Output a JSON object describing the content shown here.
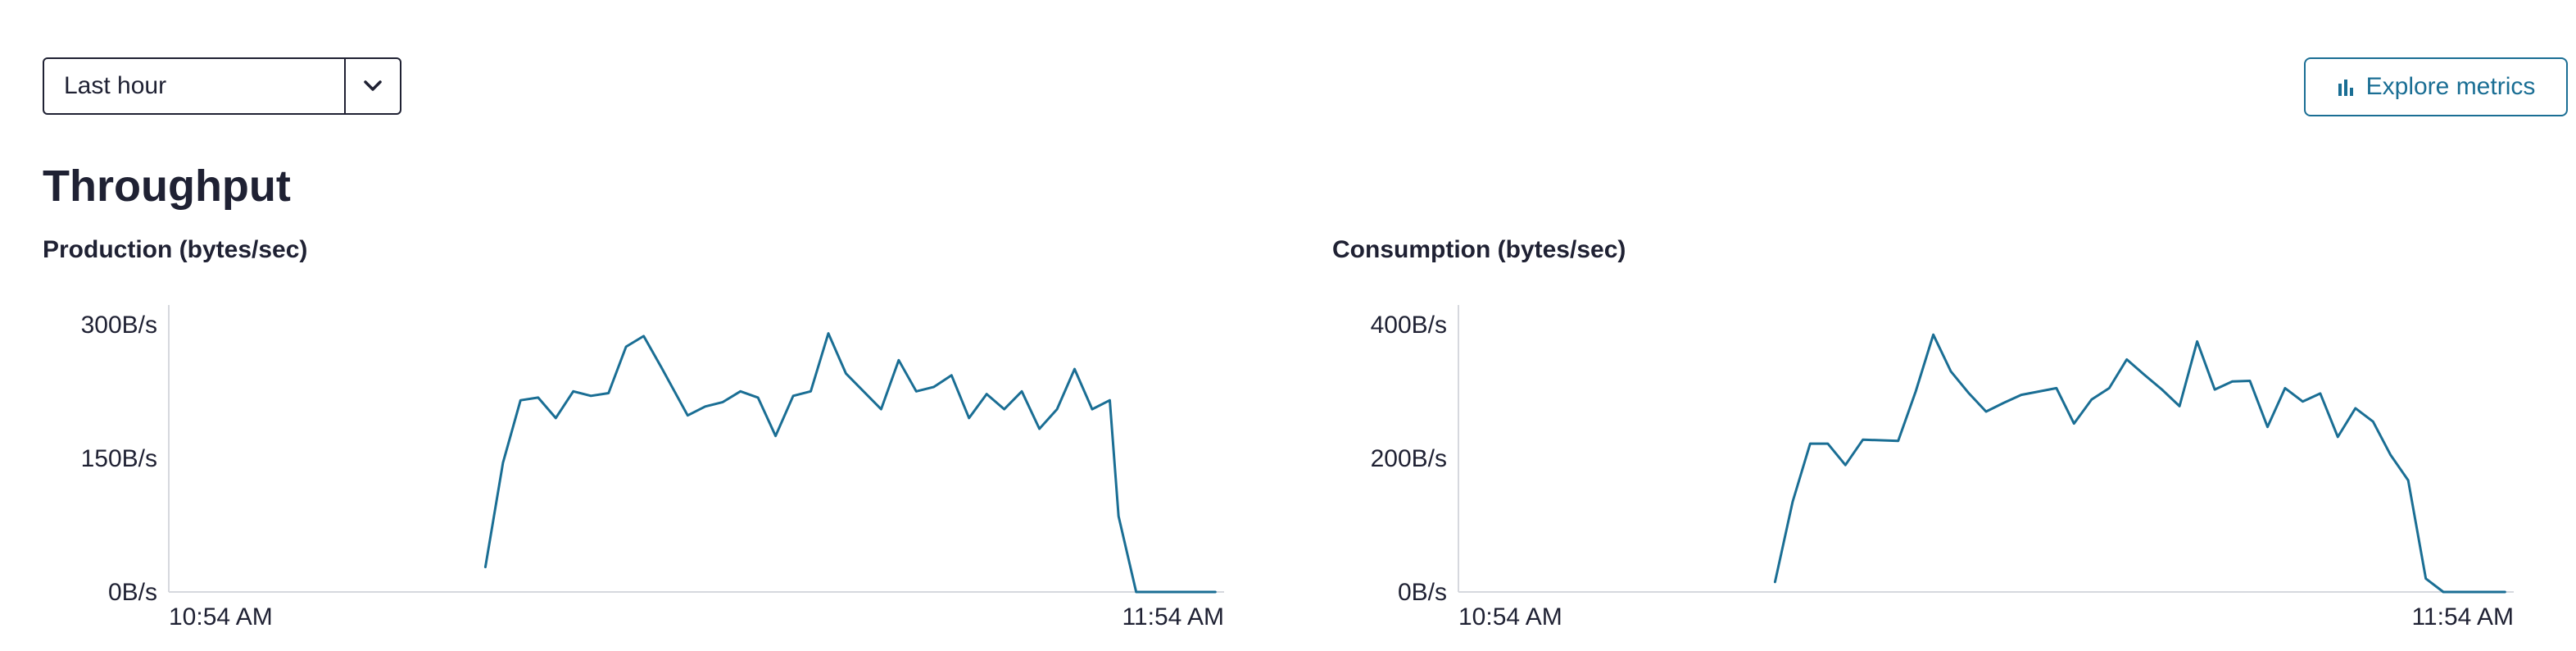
{
  "time_range": {
    "selected": "Last hour"
  },
  "toolbar": {
    "explore_label": "Explore metrics"
  },
  "section": {
    "title": "Throughput"
  },
  "colors": {
    "line": "#1a6e94",
    "accent": "#1a6e94",
    "text": "#1f2133",
    "axis": "#d6d8de"
  },
  "icons": {
    "dropdown": "chevron-down-icon",
    "explore": "bar-chart-icon"
  },
  "chart_data": [
    {
      "type": "line",
      "title": "Production (bytes/sec)",
      "x_labels": [
        "10:54 AM",
        "11:54 AM"
      ],
      "x_range": [
        0,
        60
      ],
      "y_ticks": [
        {
          "value": 0,
          "label": "0B/s"
        },
        {
          "value": 150,
          "label": "150B/s"
        },
        {
          "value": 300,
          "label": "300B/s"
        }
      ],
      "ylim": [
        0,
        320
      ],
      "grid": false,
      "series": [
        {
          "x": [
            18,
            19,
            20,
            21,
            22,
            23,
            24,
            25,
            26,
            27,
            28,
            29.5,
            30.5,
            31.5,
            32.5,
            33.5,
            34.5,
            35.5,
            36.5,
            37.5,
            38.5,
            40.5,
            41.5,
            42.5,
            43.5,
            44.5,
            45.5,
            46.5,
            47.5,
            48.5,
            49.5,
            50.5,
            51.5,
            52.5,
            53.5,
            54,
            55,
            55.5,
            56.5,
            57.5,
            58.5,
            59.5
          ],
          "y": [
            28,
            145,
            215,
            218,
            195,
            225,
            220,
            223,
            275,
            287,
            252,
            198,
            208,
            213,
            225,
            218,
            175,
            220,
            225,
            290,
            245,
            205,
            260,
            225,
            230,
            243,
            195,
            222,
            205,
            225,
            183,
            205,
            250,
            205,
            215,
            85,
            0,
            0,
            0,
            0,
            0,
            0
          ]
        }
      ]
    },
    {
      "type": "line",
      "title": "Consumption (bytes/sec)",
      "x_labels": [
        "10:54 AM",
        "11:54 AM"
      ],
      "x_range": [
        0,
        60
      ],
      "y_ticks": [
        {
          "value": 0,
          "label": "0B/s"
        },
        {
          "value": 200,
          "label": "200B/s"
        },
        {
          "value": 400,
          "label": "400B/s"
        }
      ],
      "ylim": [
        0,
        427
      ],
      "grid": false,
      "series": [
        {
          "x": [
            18,
            19,
            20,
            21,
            22,
            23,
            25,
            26,
            27,
            28,
            29,
            30,
            31,
            32,
            33,
            34,
            35,
            36,
            37,
            38,
            39,
            40,
            41,
            42,
            43,
            44,
            45,
            46,
            47,
            48,
            49,
            50,
            51,
            52,
            53,
            54,
            55,
            56,
            57,
            58,
            59,
            59.5
          ],
          "y": [
            15,
            135,
            222,
            222,
            190,
            228,
            226,
            300,
            385,
            330,
            298,
            270,
            283,
            295,
            300,
            305,
            252,
            288,
            305,
            348,
            325,
            303,
            278,
            375,
            303,
            315,
            316,
            247,
            305,
            285,
            297,
            232,
            275,
            255,
            205,
            167,
            20,
            0,
            0,
            0,
            0,
            0
          ]
        }
      ]
    }
  ]
}
